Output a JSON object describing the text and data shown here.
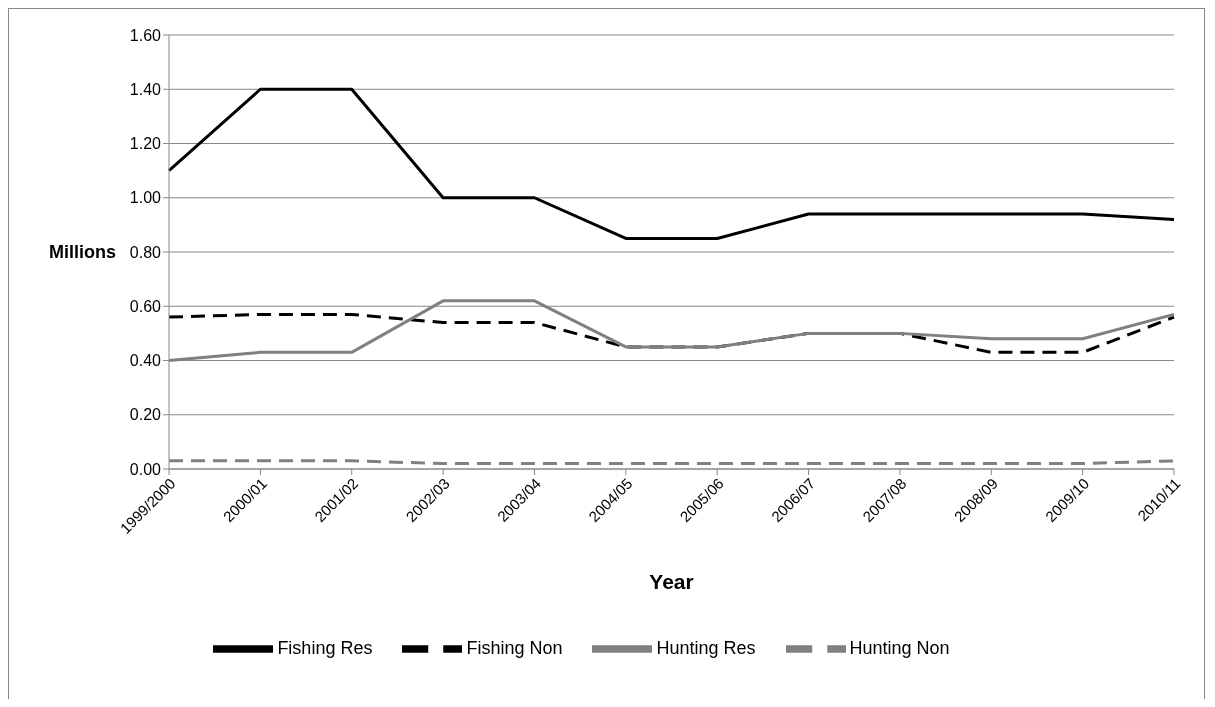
{
  "chart_data": {
    "type": "line",
    "xlabel": "Year",
    "ylabel": "Millions",
    "categories": [
      "1999/2000",
      "2000/01",
      "2001/02",
      "2002/03",
      "2003/04",
      "2004/05",
      "2005/06",
      "2006/07",
      "2007/08",
      "2008/09",
      "2009/10",
      "2010/11"
    ],
    "series": [
      {
        "name": "Fishing Res",
        "color": "#000000",
        "line_style": "solid",
        "values": [
          1.1,
          1.4,
          1.4,
          1.0,
          1.0,
          0.85,
          0.85,
          0.94,
          0.94,
          0.94,
          0.94,
          0.92
        ]
      },
      {
        "name": "Fishing Non",
        "color": "#000000",
        "line_style": "dashed",
        "values": [
          0.56,
          0.57,
          0.57,
          0.54,
          0.54,
          0.45,
          0.45,
          0.5,
          0.5,
          0.43,
          0.43,
          0.56
        ]
      },
      {
        "name": "Hunting Res",
        "color": "#808080",
        "line_style": "solid",
        "values": [
          0.4,
          0.43,
          0.43,
          0.62,
          0.62,
          0.45,
          0.45,
          0.5,
          0.5,
          0.48,
          0.48,
          0.57
        ]
      },
      {
        "name": "Hunting Non",
        "color": "#808080",
        "line_style": "dashed",
        "values": [
          0.03,
          0.03,
          0.03,
          0.02,
          0.02,
          0.02,
          0.02,
          0.02,
          0.02,
          0.02,
          0.02,
          0.03
        ]
      }
    ],
    "ylim": [
      0,
      1.6
    ],
    "yticks": [
      {
        "value": 0,
        "label": "0.00"
      },
      {
        "value": 0.2,
        "label": "0.20"
      },
      {
        "value": 0.4,
        "label": "0.40"
      },
      {
        "value": 0.6,
        "label": "0.60"
      },
      {
        "value": 0.8,
        "label": "0.80"
      },
      {
        "value": 1.0,
        "label": "1.00"
      },
      {
        "value": 1.2,
        "label": "1.20"
      },
      {
        "value": 1.4,
        "label": "1.40"
      },
      {
        "value": 1.6,
        "label": "1.60"
      }
    ],
    "grid": "y",
    "legend": "bottom",
    "marker": "none"
  }
}
